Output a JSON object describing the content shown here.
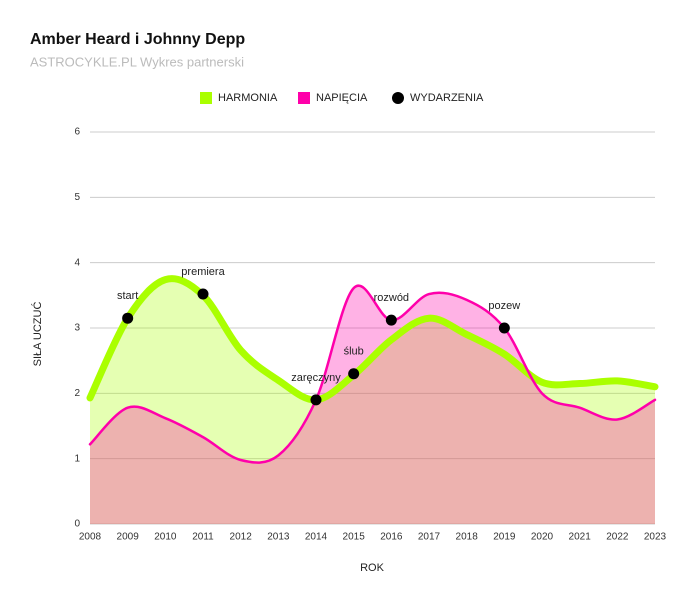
{
  "chart_data": {
    "type": "line",
    "title": "Amber Heard i Johnny Depp",
    "subtitle": "ASTROCYKLE.PL Wykres partnerski",
    "x_label": "ROK",
    "y_label": "SIŁA UCZUĆ",
    "x": [
      2008,
      2009,
      2010,
      2011,
      2012,
      2013,
      2014,
      2015,
      2016,
      2017,
      2018,
      2019,
      2020,
      2021,
      2022,
      2023
    ],
    "series": [
      {
        "name": "HARMONIA",
        "color": "#aaff00",
        "values": [
          1.93,
          3.15,
          3.74,
          3.5,
          2.66,
          2.2,
          1.9,
          2.28,
          2.82,
          3.15,
          2.9,
          2.6,
          2.17,
          2.15,
          2.19,
          2.1
        ]
      },
      {
        "name": "NAPIĘCIA",
        "color": "#ff00aa",
        "values": [
          1.22,
          1.78,
          1.62,
          1.33,
          0.98,
          1.05,
          1.9,
          3.61,
          3.12,
          3.52,
          3.43,
          3.0,
          2.0,
          1.78,
          1.6,
          1.9
        ]
      }
    ],
    "events": {
      "name": "WYDARZENIA",
      "color": "#000000",
      "x": [
        2009,
        2011,
        2014,
        2015,
        2016,
        2019
      ],
      "values": [
        3.15,
        3.52,
        1.9,
        2.3,
        3.12,
        3.0
      ],
      "labels": [
        "start",
        "premiera",
        "zaręczyny",
        "ślub",
        "rozwód",
        "pozew"
      ]
    },
    "xlim": [
      2008,
      2023
    ],
    "xticks": [
      2008,
      2009,
      2010,
      2011,
      2012,
      2013,
      2014,
      2015,
      2016,
      2017,
      2018,
      2019,
      2020,
      2021,
      2022,
      2023
    ],
    "ylim": [
      0,
      6
    ],
    "yticks": [
      0,
      1,
      2,
      3,
      4,
      5,
      6
    ],
    "grid": true
  }
}
